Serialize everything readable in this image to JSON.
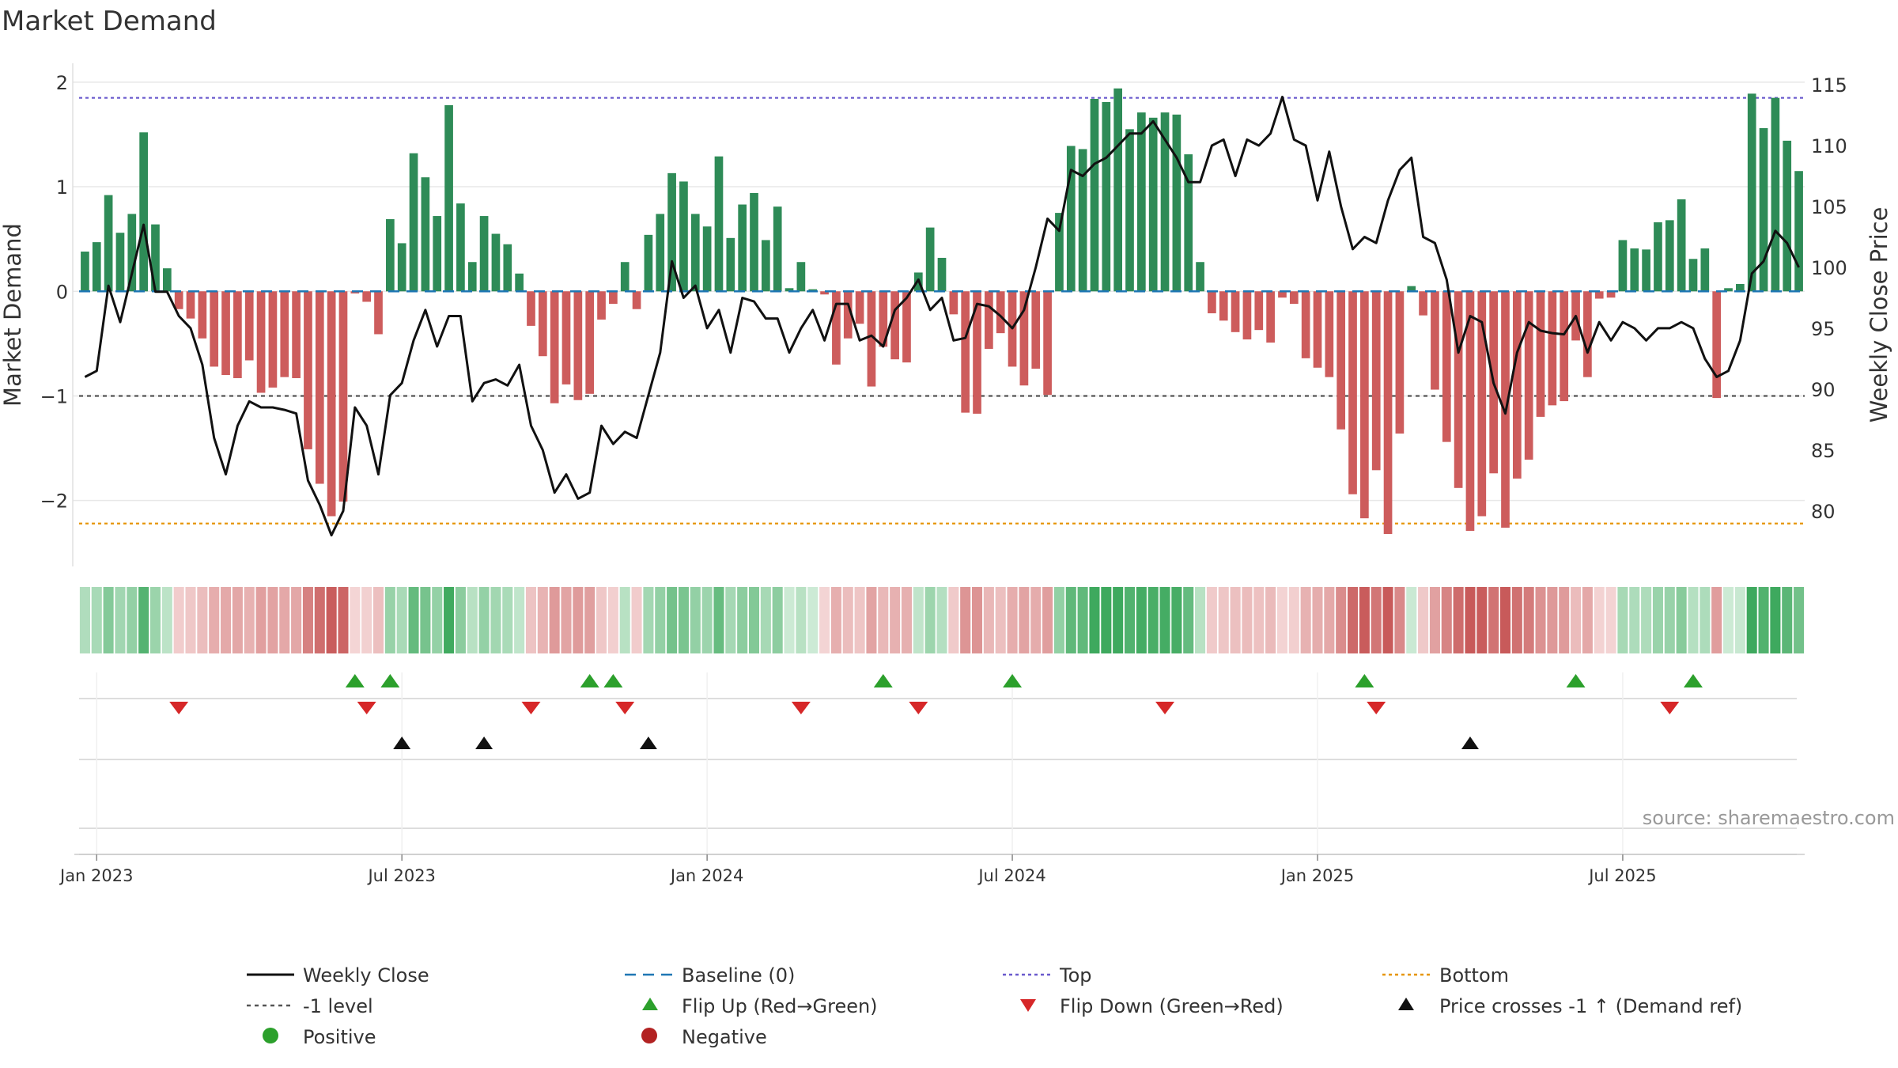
{
  "chart_data": {
    "type": "bar",
    "title": "Market Demand",
    "ylabel": "Market Demand",
    "y2label": "Weekly Close Price",
    "ylim": [
      -2.6,
      2.15
    ],
    "y2lim": [
      75.7,
      116.5
    ],
    "yticks": [
      2,
      1,
      0,
      -1,
      -2
    ],
    "ytick_labels": [
      "2",
      "1",
      "0",
      "−1",
      "−2"
    ],
    "y2ticks": [
      115,
      110,
      105,
      100,
      95,
      90,
      85,
      80
    ],
    "xticks": [
      {
        "week": 1,
        "label": "Jan 2023"
      },
      {
        "week": 27,
        "label": "Jul 2023"
      },
      {
        "week": 53,
        "label": "Jan 2024"
      },
      {
        "week": 79,
        "label": "Jul 2024"
      },
      {
        "week": 105,
        "label": "Jan 2025"
      },
      {
        "week": 131,
        "label": "Jul 2025"
      }
    ],
    "reference_lines": {
      "top": 1.85,
      "level": -1.0,
      "baseline": 0,
      "bottom": -2.22
    },
    "demand": [
      0.38,
      0.47,
      0.92,
      0.56,
      0.74,
      1.52,
      0.64,
      0.22,
      -0.17,
      -0.26,
      -0.45,
      -0.72,
      -0.8,
      -0.83,
      -0.66,
      -0.97,
      -0.92,
      -0.82,
      -0.83,
      -1.51,
      -1.84,
      -2.15,
      -2.01,
      -0.02,
      -0.1,
      -0.41,
      0.69,
      0.46,
      1.32,
      1.09,
      0.72,
      1.78,
      0.84,
      0.28,
      0.72,
      0.55,
      0.45,
      0.17,
      -0.33,
      -0.62,
      -1.07,
      -0.89,
      -1.04,
      -0.98,
      -0.27,
      -0.12,
      0.28,
      -0.17,
      0.54,
      0.74,
      1.13,
      1.05,
      0.74,
      0.62,
      1.29,
      0.51,
      0.83,
      0.94,
      0.49,
      0.81,
      0.03,
      0.28,
      0.02,
      -0.03,
      -0.7,
      -0.45,
      -0.31,
      -0.91,
      -0.53,
      -0.65,
      -0.68,
      0.18,
      0.61,
      0.32,
      -0.22,
      -1.16,
      -1.17,
      -0.55,
      -0.4,
      -0.72,
      -0.9,
      -0.74,
      -0.99,
      0.75,
      1.39,
      1.36,
      1.84,
      1.81,
      1.94,
      1.55,
      1.71,
      1.66,
      1.71,
      1.69,
      1.31,
      0.28,
      -0.21,
      -0.28,
      -0.39,
      -0.46,
      -0.37,
      -0.49,
      -0.06,
      -0.12,
      -0.64,
      -0.73,
      -0.82,
      -1.32,
      -1.94,
      -2.17,
      -1.71,
      -2.32,
      -1.36,
      0.05,
      -0.23,
      -0.94,
      -1.44,
      -1.88,
      -2.29,
      -2.15,
      -1.74,
      -2.26,
      -1.79,
      -1.61,
      -1.2,
      -1.09,
      -1.05,
      -0.47,
      -0.82,
      -0.07,
      -0.06,
      0.49,
      0.41,
      0.4,
      0.66,
      0.68,
      0.88,
      0.31,
      0.41,
      -1.02,
      0.03,
      0.07,
      1.89,
      1.56,
      1.85,
      1.44,
      1.15
    ],
    "weekly_close": [
      91.0,
      91.5,
      98.5,
      95.5,
      99.5,
      103.5,
      98.0,
      98.0,
      96.0,
      95.0,
      92.0,
      86.0,
      83.0,
      87.0,
      89.0,
      88.5,
      88.5,
      88.3,
      88.0,
      82.5,
      80.5,
      78.0,
      80.0,
      88.5,
      87.0,
      83.0,
      89.5,
      90.5,
      94.0,
      96.5,
      93.5,
      96.0,
      96.0,
      89.0,
      90.5,
      90.8,
      90.3,
      92.0,
      87.0,
      85.0,
      81.5,
      83.0,
      81.0,
      81.5,
      87.0,
      85.5,
      86.5,
      86.0,
      89.5,
      93.0,
      100.5,
      97.5,
      98.5,
      95.0,
      96.5,
      93.0,
      97.5,
      97.2,
      95.8,
      95.8,
      93.0,
      95.0,
      96.5,
      94.0,
      97.0,
      97.0,
      94.0,
      94.4,
      93.5,
      96.5,
      97.5,
      99.0,
      96.5,
      97.5,
      94.0,
      94.2,
      97.0,
      96.8,
      96.0,
      95.0,
      96.5,
      100.0,
      104.0,
      103.0,
      108.0,
      107.5,
      108.5,
      109.0,
      110.0,
      111.0,
      111.0,
      112.0,
      110.5,
      109.0,
      107.0,
      107.0,
      110.0,
      110.5,
      107.5,
      110.5,
      110.0,
      111.0,
      114.0,
      110.5,
      110.0,
      105.5,
      109.5,
      105.0,
      101.5,
      102.5,
      102.0,
      105.5,
      108.0,
      109.0,
      102.5,
      102.0,
      99.0,
      93.0,
      96.0,
      95.5,
      90.5,
      88.0,
      93.0,
      95.5,
      94.8,
      94.6,
      94.5,
      96.0,
      93.0,
      95.5,
      94.0,
      95.5,
      95.0,
      94.0,
      95.0,
      95.0,
      95.5,
      95.0,
      92.5,
      91.0,
      91.5,
      94.0,
      99.5,
      100.5,
      103.0,
      102.0,
      100.0
    ],
    "flip_up_weeks": [
      23,
      26,
      43,
      45,
      68,
      79,
      109,
      127,
      137
    ],
    "flip_down_weeks": [
      8,
      24,
      38,
      46,
      61,
      71,
      92,
      110,
      135
    ],
    "price_cross_weeks": [
      27,
      34,
      48,
      118
    ],
    "legend": [
      {
        "key": "weekly_close",
        "label": "Weekly Close",
        "color": "#111111"
      },
      {
        "key": "baseline",
        "label": "Baseline (0)",
        "color": "#1f77b4"
      },
      {
        "key": "top",
        "label": "Top",
        "color": "#6a5acd"
      },
      {
        "key": "bottom",
        "label": "Bottom",
        "color": "#e69500"
      },
      {
        "key": "level",
        "label": "-1 level",
        "color": "#555555"
      },
      {
        "key": "flip_up",
        "label": "Flip Up (Red→Green)",
        "color": "#2ca02c"
      },
      {
        "key": "flip_down",
        "label": "Flip Down (Green→Red)",
        "color": "#d62728"
      },
      {
        "key": "price_cross",
        "label": "Price crosses -1 ↑ (Demand ref)",
        "color": "#111111"
      },
      {
        "key": "positive",
        "label": "Positive",
        "color": "#2e8b57"
      },
      {
        "key": "negative",
        "label": "Negative",
        "color": "#b22222"
      }
    ],
    "source": "source: sharemaestro.com"
  }
}
